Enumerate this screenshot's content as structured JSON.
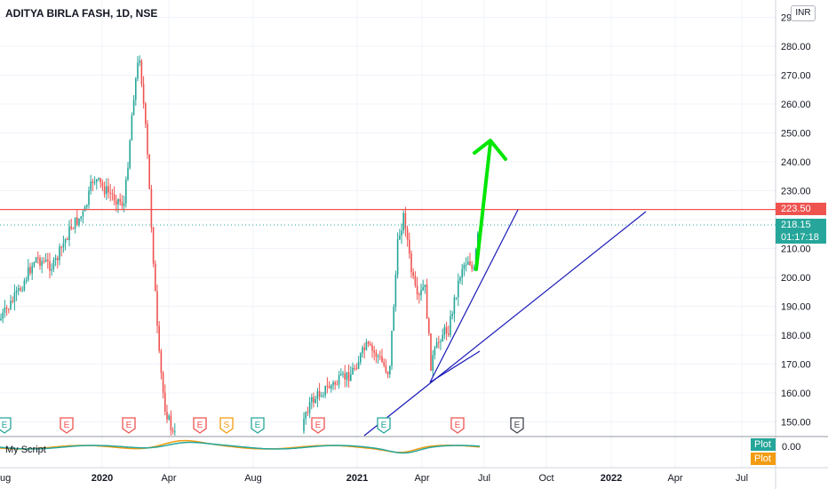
{
  "header": {
    "symbol_title": "ADITYA BIRLA FASH, 1D, NSE",
    "currency": "INR"
  },
  "price_axis": {
    "ticks": [
      "290.00",
      "280.00",
      "270.00",
      "260.00",
      "250.00",
      "240.00",
      "230.00",
      "210.00",
      "200.00",
      "190.00",
      "180.00",
      "170.00",
      "160.00",
      "150.00"
    ],
    "resistance_label": "223.50",
    "last_price_label": "218.15",
    "countdown_label": "01:17:18"
  },
  "time_axis": {
    "labels": [
      {
        "text": "ug",
        "bold": false
      },
      {
        "text": "2020",
        "bold": true
      },
      {
        "text": "Apr",
        "bold": false
      },
      {
        "text": "Aug",
        "bold": false
      },
      {
        "text": "2021",
        "bold": true
      },
      {
        "text": "Apr",
        "bold": false
      },
      {
        "text": "Jul",
        "bold": false
      },
      {
        "text": "Oct",
        "bold": false
      },
      {
        "text": "2022",
        "bold": true
      },
      {
        "text": "Apr",
        "bold": false
      },
      {
        "text": "Jul",
        "bold": false
      }
    ]
  },
  "indicator": {
    "title": "My Script",
    "zero_label": "0.00",
    "plot1_label": "Plot",
    "plot2_label": "Plot"
  },
  "events": [
    {
      "letter": "E",
      "kind": "dividend"
    },
    {
      "letter": "E",
      "kind": "earnings"
    },
    {
      "letter": "E",
      "kind": "earnings"
    },
    {
      "letter": "E",
      "kind": "earnings"
    },
    {
      "letter": "S",
      "kind": "split"
    },
    {
      "letter": "E",
      "kind": "dividend"
    },
    {
      "letter": "E",
      "kind": "earnings"
    },
    {
      "letter": "E",
      "kind": "dividend"
    },
    {
      "letter": "E",
      "kind": "earnings"
    },
    {
      "letter": "E",
      "kind": "upcoming"
    }
  ],
  "colors": {
    "up_candle": "#26a69a",
    "down_candle": "#ef5350",
    "resistance_line": "#ef5350",
    "trendline": "#1a1ab8",
    "arrow": "#00e600",
    "plot1": "#26a69a",
    "plot2": "#f39c12",
    "grid": "#f0f3fa"
  },
  "chart_data": {
    "type": "line",
    "title": "ADITYA BIRLA FASH, 1D, NSE",
    "y_range": [
      145,
      292
    ],
    "resistance_level": 223.5,
    "last_price": 218.15,
    "price_path": [
      {
        "x": "2019-08",
        "y": 185
      },
      {
        "x": "2019-09",
        "y": 205
      },
      {
        "x": "2019-10",
        "y": 212
      },
      {
        "x": "2019-11",
        "y": 218
      },
      {
        "x": "2019-12",
        "y": 235
      },
      {
        "x": "2020-01",
        "y": 230
      },
      {
        "x": "2020-02",
        "y": 270
      },
      {
        "x": "2020-02-20",
        "y": 280
      },
      {
        "x": "2020-03",
        "y": 200
      },
      {
        "x": "2020-04",
        "y": 150
      },
      {
        "x": "2021-01",
        "y": 185
      },
      {
        "x": "2021-02",
        "y": 175
      },
      {
        "x": "2021-03",
        "y": 222
      },
      {
        "x": "2021-04",
        "y": 165
      },
      {
        "x": "2021-05",
        "y": 190
      },
      {
        "x": "2021-06",
        "y": 212
      },
      {
        "x": "2021-07",
        "y": 218.15
      }
    ]
  }
}
